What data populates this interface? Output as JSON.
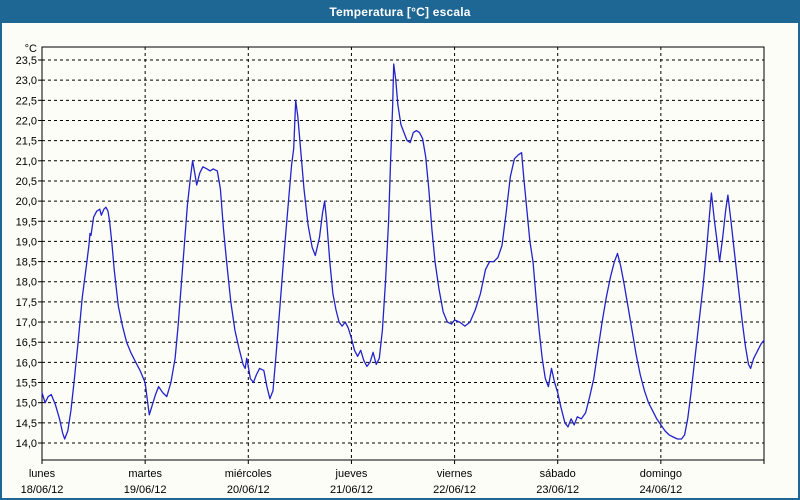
{
  "window": {
    "title": "Temperatura [°C] escala",
    "colors": {
      "chrome": "#1e6694",
      "background": "#fdfdf7",
      "grid": "#000000",
      "text": "#000000",
      "title_text": "#ffffff"
    }
  },
  "chart_data": {
    "type": "line",
    "title": "Temperatura [°C] escala",
    "ylabel": "°C",
    "xlabel": "",
    "ylim": [
      14.0,
      23.5
    ],
    "y_step": 0.5,
    "grid": "dashed",
    "legend": "none",
    "y_tick_labels": [
      "23,5",
      "23,0",
      "22,5",
      "22,0",
      "21,5",
      "21,0",
      "20,5",
      "20,0",
      "19,5",
      "19,0",
      "18,5",
      "18,0",
      "17,5",
      "17,0",
      "16,5",
      "16,0",
      "15,5",
      "15,0",
      "14,5",
      "14,0"
    ],
    "x_axis": {
      "days": [
        {
          "name": "lunes",
          "date": "18/06/12"
        },
        {
          "name": "martes",
          "date": "19/06/12"
        },
        {
          "name": "miércoles",
          "date": "20/06/12"
        },
        {
          "name": "jueves",
          "date": "21/06/12"
        },
        {
          "name": "viernes",
          "date": "22/06/12"
        },
        {
          "name": "sábado",
          "date": "23/06/12"
        },
        {
          "name": "domingo",
          "date": "24/06/12"
        }
      ]
    },
    "series": [
      {
        "name": "Temperatura",
        "color": "#2323cc",
        "units": "°C",
        "x_units": "days_from_2012-06-18",
        "points_day_temp": [
          [
            0.0,
            15.25
          ],
          [
            0.03,
            15.0
          ],
          [
            0.06,
            15.15
          ],
          [
            0.09,
            15.2
          ],
          [
            0.13,
            14.95
          ],
          [
            0.17,
            14.6
          ],
          [
            0.2,
            14.25
          ],
          [
            0.22,
            14.1
          ],
          [
            0.25,
            14.3
          ],
          [
            0.28,
            14.8
          ],
          [
            0.31,
            15.5
          ],
          [
            0.35,
            16.5
          ],
          [
            0.39,
            17.6
          ],
          [
            0.43,
            18.4
          ],
          [
            0.455,
            18.9
          ],
          [
            0.465,
            19.2
          ],
          [
            0.475,
            19.15
          ],
          [
            0.5,
            19.6
          ],
          [
            0.53,
            19.75
          ],
          [
            0.56,
            19.8
          ],
          [
            0.575,
            19.65
          ],
          [
            0.6,
            19.8
          ],
          [
            0.62,
            19.85
          ],
          [
            0.64,
            19.75
          ],
          [
            0.655,
            19.5
          ],
          [
            0.68,
            18.9
          ],
          [
            0.7,
            18.3
          ],
          [
            0.74,
            17.4
          ],
          [
            0.78,
            16.9
          ],
          [
            0.82,
            16.5
          ],
          [
            0.86,
            16.25
          ],
          [
            0.9,
            16.05
          ],
          [
            0.95,
            15.8
          ],
          [
            1.0,
            15.5
          ],
          [
            1.02,
            15.1
          ],
          [
            1.04,
            14.7
          ],
          [
            1.07,
            14.95
          ],
          [
            1.1,
            15.2
          ],
          [
            1.13,
            15.4
          ],
          [
            1.17,
            15.25
          ],
          [
            1.21,
            15.15
          ],
          [
            1.25,
            15.5
          ],
          [
            1.29,
            16.1
          ],
          [
            1.32,
            16.9
          ],
          [
            1.35,
            17.9
          ],
          [
            1.38,
            18.9
          ],
          [
            1.41,
            19.9
          ],
          [
            1.44,
            20.6
          ],
          [
            1.46,
            21.0
          ],
          [
            1.48,
            20.7
          ],
          [
            1.5,
            20.4
          ],
          [
            1.53,
            20.7
          ],
          [
            1.56,
            20.85
          ],
          [
            1.6,
            20.8
          ],
          [
            1.63,
            20.75
          ],
          [
            1.66,
            20.8
          ],
          [
            1.7,
            20.75
          ],
          [
            1.73,
            20.3
          ],
          [
            1.76,
            19.3
          ],
          [
            1.79,
            18.5
          ],
          [
            1.83,
            17.5
          ],
          [
            1.87,
            16.8
          ],
          [
            1.91,
            16.35
          ],
          [
            1.95,
            15.95
          ],
          [
            1.97,
            15.85
          ],
          [
            1.985,
            16.1
          ],
          [
            2.0,
            15.9
          ],
          [
            2.02,
            15.6
          ],
          [
            2.05,
            15.5
          ],
          [
            2.08,
            15.7
          ],
          [
            2.11,
            15.85
          ],
          [
            2.15,
            15.8
          ],
          [
            2.18,
            15.4
          ],
          [
            2.21,
            15.1
          ],
          [
            2.24,
            15.3
          ],
          [
            2.27,
            16.2
          ],
          [
            2.31,
            17.5
          ],
          [
            2.35,
            18.8
          ],
          [
            2.39,
            20.0
          ],
          [
            2.42,
            20.9
          ],
          [
            2.44,
            21.3
          ],
          [
            2.46,
            22.5
          ],
          [
            2.48,
            22.1
          ],
          [
            2.51,
            21.2
          ],
          [
            2.54,
            20.3
          ],
          [
            2.58,
            19.4
          ],
          [
            2.62,
            18.85
          ],
          [
            2.65,
            18.65
          ],
          [
            2.69,
            19.1
          ],
          [
            2.72,
            19.7
          ],
          [
            2.74,
            20.0
          ],
          [
            2.76,
            19.5
          ],
          [
            2.79,
            18.5
          ],
          [
            2.82,
            17.7
          ],
          [
            2.85,
            17.3
          ],
          [
            2.88,
            17.0
          ],
          [
            2.91,
            16.9
          ],
          [
            2.94,
            17.0
          ],
          [
            2.97,
            16.85
          ],
          [
            3.0,
            16.6
          ],
          [
            3.03,
            16.3
          ],
          [
            3.06,
            16.15
          ],
          [
            3.09,
            16.3
          ],
          [
            3.12,
            16.05
          ],
          [
            3.15,
            15.9
          ],
          [
            3.18,
            16.0
          ],
          [
            3.21,
            16.25
          ],
          [
            3.24,
            15.95
          ],
          [
            3.27,
            16.1
          ],
          [
            3.3,
            16.8
          ],
          [
            3.33,
            18.0
          ],
          [
            3.36,
            19.5
          ],
          [
            3.38,
            21.0
          ],
          [
            3.4,
            22.4
          ],
          [
            3.41,
            23.4
          ],
          [
            3.43,
            23.0
          ],
          [
            3.45,
            22.4
          ],
          [
            3.48,
            21.9
          ],
          [
            3.51,
            21.7
          ],
          [
            3.54,
            21.5
          ],
          [
            3.57,
            21.45
          ],
          [
            3.6,
            21.7
          ],
          [
            3.63,
            21.75
          ],
          [
            3.66,
            21.7
          ],
          [
            3.69,
            21.55
          ],
          [
            3.72,
            21.1
          ],
          [
            3.75,
            20.3
          ],
          [
            3.78,
            19.3
          ],
          [
            3.81,
            18.5
          ],
          [
            3.85,
            17.8
          ],
          [
            3.89,
            17.25
          ],
          [
            3.93,
            17.0
          ],
          [
            3.97,
            16.95
          ],
          [
            4.0,
            17.05
          ],
          [
            4.05,
            17.0
          ],
          [
            4.1,
            16.9
          ],
          [
            4.15,
            17.0
          ],
          [
            4.2,
            17.3
          ],
          [
            4.25,
            17.7
          ],
          [
            4.3,
            18.3
          ],
          [
            4.34,
            18.5
          ],
          [
            4.38,
            18.5
          ],
          [
            4.42,
            18.6
          ],
          [
            4.46,
            18.9
          ],
          [
            4.5,
            19.7
          ],
          [
            4.54,
            20.6
          ],
          [
            4.58,
            21.05
          ],
          [
            4.62,
            21.15
          ],
          [
            4.65,
            21.2
          ],
          [
            4.67,
            20.6
          ],
          [
            4.7,
            19.8
          ],
          [
            4.73,
            19.0
          ],
          [
            4.76,
            18.5
          ],
          [
            4.79,
            17.6
          ],
          [
            4.82,
            16.8
          ],
          [
            4.85,
            16.1
          ],
          [
            4.88,
            15.6
          ],
          [
            4.91,
            15.4
          ],
          [
            4.94,
            15.85
          ],
          [
            4.97,
            15.5
          ],
          [
            5.0,
            15.25
          ],
          [
            5.03,
            14.9
          ],
          [
            5.07,
            14.5
          ],
          [
            5.1,
            14.4
          ],
          [
            5.13,
            14.6
          ],
          [
            5.16,
            14.45
          ],
          [
            5.19,
            14.65
          ],
          [
            5.23,
            14.6
          ],
          [
            5.27,
            14.75
          ],
          [
            5.31,
            15.15
          ],
          [
            5.35,
            15.6
          ],
          [
            5.39,
            16.3
          ],
          [
            5.43,
            17.0
          ],
          [
            5.47,
            17.6
          ],
          [
            5.51,
            18.1
          ],
          [
            5.55,
            18.5
          ],
          [
            5.58,
            18.7
          ],
          [
            5.61,
            18.4
          ],
          [
            5.64,
            18.0
          ],
          [
            5.68,
            17.4
          ],
          [
            5.72,
            16.8
          ],
          [
            5.76,
            16.2
          ],
          [
            5.8,
            15.7
          ],
          [
            5.84,
            15.3
          ],
          [
            5.88,
            15.0
          ],
          [
            5.92,
            14.8
          ],
          [
            5.96,
            14.6
          ],
          [
            6.0,
            14.45
          ],
          [
            6.04,
            14.3
          ],
          [
            6.08,
            14.2
          ],
          [
            6.12,
            14.15
          ],
          [
            6.16,
            14.1
          ],
          [
            6.2,
            14.1
          ],
          [
            6.23,
            14.2
          ],
          [
            6.26,
            14.6
          ],
          [
            6.29,
            15.2
          ],
          [
            6.33,
            16.1
          ],
          [
            6.37,
            17.0
          ],
          [
            6.41,
            17.9
          ],
          [
            6.44,
            18.7
          ],
          [
            6.47,
            19.6
          ],
          [
            6.49,
            20.2
          ],
          [
            6.52,
            19.5
          ],
          [
            6.55,
            18.9
          ],
          [
            6.57,
            18.5
          ],
          [
            6.6,
            19.1
          ],
          [
            6.63,
            19.8
          ],
          [
            6.65,
            20.15
          ],
          [
            6.68,
            19.5
          ],
          [
            6.71,
            18.8
          ],
          [
            6.75,
            17.9
          ],
          [
            6.79,
            17.0
          ],
          [
            6.82,
            16.4
          ],
          [
            6.85,
            15.95
          ],
          [
            6.87,
            15.85
          ],
          [
            6.9,
            16.1
          ],
          [
            6.94,
            16.3
          ],
          [
            6.97,
            16.45
          ],
          [
            7.0,
            16.55
          ]
        ]
      }
    ]
  }
}
